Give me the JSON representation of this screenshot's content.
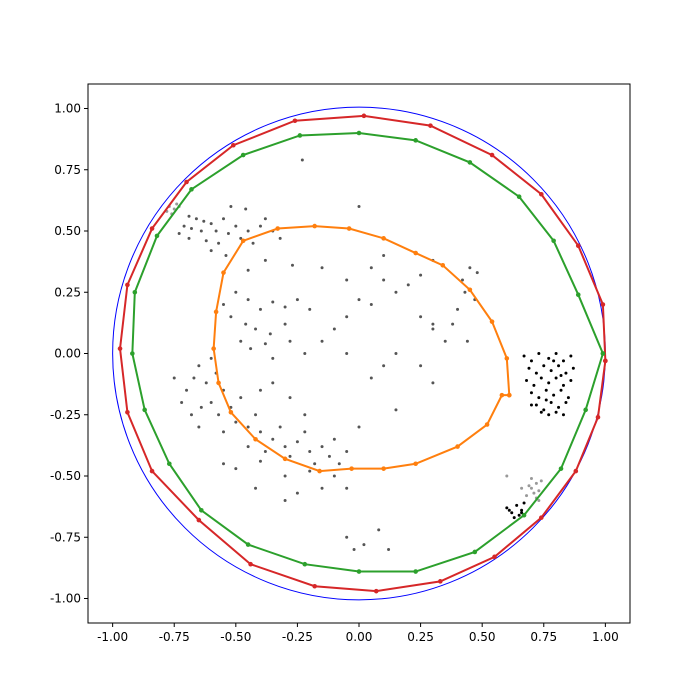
{
  "chart_data": {
    "type": "scatter",
    "title": "",
    "xlabel": "",
    "ylabel": "",
    "xlim": [
      -1.1,
      1.1
    ],
    "ylim": [
      -1.1,
      1.1
    ],
    "grid": false,
    "x_ticks": [
      "-1.00",
      "-0.75",
      "-0.50",
      "-0.25",
      "0.00",
      "0.25",
      "0.50",
      "0.75",
      "1.00"
    ],
    "y_ticks": [
      "1.00",
      "0.75",
      "0.50",
      "0.25",
      "0.00",
      "-0.25",
      "-0.50",
      "-0.75",
      "-1.00"
    ],
    "x_tick_values": [
      -1.0,
      -0.75,
      -0.5,
      -0.25,
      0.0,
      0.25,
      0.5,
      0.75,
      1.0
    ],
    "y_tick_values": [
      1.0,
      0.75,
      0.5,
      0.25,
      0.0,
      -0.25,
      -0.5,
      -0.75,
      -1.0
    ],
    "unit_circle": {
      "radius": 1.0,
      "color": "#0000ff"
    },
    "series": [
      {
        "color": "#d62728",
        "points": [
          [
            1.0,
            -0.03
          ],
          [
            0.99,
            0.2
          ],
          [
            0.89,
            0.44
          ],
          [
            0.74,
            0.65
          ],
          [
            0.54,
            0.81
          ],
          [
            0.29,
            0.93
          ],
          [
            0.02,
            0.97
          ],
          [
            -0.26,
            0.95
          ],
          [
            -0.51,
            0.85
          ],
          [
            -0.7,
            0.7
          ],
          [
            -0.84,
            0.51
          ],
          [
            -0.94,
            0.28
          ],
          [
            -0.97,
            0.02
          ],
          [
            -0.94,
            -0.24
          ],
          [
            -0.84,
            -0.48
          ],
          [
            -0.65,
            -0.68
          ],
          [
            -0.44,
            -0.86
          ],
          [
            -0.18,
            -0.95
          ],
          [
            0.07,
            -0.97
          ],
          [
            0.33,
            -0.93
          ],
          [
            0.55,
            -0.83
          ],
          [
            0.74,
            -0.67
          ],
          [
            0.88,
            -0.48
          ],
          [
            0.97,
            -0.26
          ],
          [
            1.0,
            -0.03
          ]
        ]
      },
      {
        "color": "#2ca02c",
        "points": [
          [
            0.99,
            0.0
          ],
          [
            0.89,
            0.24
          ],
          [
            0.79,
            0.46
          ],
          [
            0.65,
            0.64
          ],
          [
            0.45,
            0.78
          ],
          [
            0.23,
            0.87
          ],
          [
            0.0,
            0.9
          ],
          [
            -0.24,
            0.89
          ],
          [
            -0.47,
            0.81
          ],
          [
            -0.68,
            0.67
          ],
          [
            -0.82,
            0.48
          ],
          [
            -0.91,
            0.25
          ],
          [
            -0.92,
            0.0
          ],
          [
            -0.87,
            -0.23
          ],
          [
            -0.77,
            -0.45
          ],
          [
            -0.64,
            -0.64
          ],
          [
            -0.45,
            -0.78
          ],
          [
            -0.22,
            -0.86
          ],
          [
            0.0,
            -0.89
          ],
          [
            0.23,
            -0.89
          ],
          [
            0.47,
            -0.81
          ],
          [
            0.67,
            -0.66
          ],
          [
            0.82,
            -0.47
          ],
          [
            0.92,
            -0.23
          ],
          [
            0.99,
            0.0
          ]
        ]
      },
      {
        "color": "#ff7f0e",
        "points": [
          [
            0.61,
            -0.17
          ],
          [
            0.6,
            -0.02
          ],
          [
            0.54,
            0.13
          ],
          [
            0.45,
            0.26
          ],
          [
            0.34,
            0.36
          ],
          [
            0.23,
            0.41
          ],
          [
            0.1,
            0.47
          ],
          [
            -0.04,
            0.51
          ],
          [
            -0.18,
            0.52
          ],
          [
            -0.33,
            0.51
          ],
          [
            -0.47,
            0.46
          ],
          [
            -0.55,
            0.33
          ],
          [
            -0.58,
            0.17
          ],
          [
            -0.59,
            0.02
          ],
          [
            -0.57,
            -0.12
          ],
          [
            -0.52,
            -0.24
          ],
          [
            -0.42,
            -0.35
          ],
          [
            -0.3,
            -0.43
          ],
          [
            -0.16,
            -0.48
          ],
          [
            -0.03,
            -0.47
          ],
          [
            0.1,
            -0.47
          ],
          [
            0.23,
            -0.45
          ],
          [
            0.4,
            -0.38
          ],
          [
            0.52,
            -0.29
          ],
          [
            0.58,
            -0.17
          ],
          [
            0.61,
            -0.17
          ]
        ]
      }
    ],
    "scatter_groups": [
      {
        "color": "#555555",
        "points": [
          [
            -0.69,
            0.56
          ],
          [
            -0.66,
            0.55
          ],
          [
            -0.63,
            0.54
          ],
          [
            -0.71,
            0.52
          ],
          [
            -0.68,
            0.51
          ],
          [
            -0.64,
            0.5
          ],
          [
            -0.6,
            0.53
          ],
          [
            -0.58,
            0.5
          ],
          [
            -0.55,
            0.55
          ],
          [
            -0.73,
            0.49
          ],
          [
            -0.69,
            0.47
          ],
          [
            -0.62,
            0.46
          ],
          [
            -0.57,
            0.45
          ],
          [
            -0.53,
            0.49
          ],
          [
            -0.5,
            0.52
          ],
          [
            -0.48,
            0.47
          ],
          [
            -0.45,
            0.5
          ],
          [
            -0.43,
            0.45
          ],
          [
            -0.4,
            0.52
          ],
          [
            -0.38,
            0.55
          ],
          [
            -0.35,
            0.5
          ],
          [
            -0.32,
            0.47
          ],
          [
            -0.52,
            0.6
          ],
          [
            -0.46,
            0.59
          ],
          [
            -0.6,
            0.42
          ],
          [
            -0.54,
            0.4
          ],
          [
            -0.55,
            0.2
          ],
          [
            -0.5,
            0.25
          ],
          [
            -0.45,
            0.22
          ],
          [
            -0.4,
            0.18
          ],
          [
            -0.35,
            0.21
          ],
          [
            -0.3,
            0.19
          ],
          [
            -0.25,
            0.22
          ],
          [
            -0.2,
            0.18
          ],
          [
            -0.52,
            0.15
          ],
          [
            -0.46,
            0.12
          ],
          [
            -0.42,
            0.1
          ],
          [
            -0.36,
            0.08
          ],
          [
            -0.3,
            0.12
          ],
          [
            -0.48,
            0.05
          ],
          [
            -0.44,
            0.02
          ],
          [
            -0.38,
            0.04
          ],
          [
            -0.35,
            -0.02
          ],
          [
            -0.28,
            0.05
          ],
          [
            -0.22,
            0.0
          ],
          [
            -0.15,
            0.05
          ],
          [
            -0.1,
            0.1
          ],
          [
            -0.05,
            0.15
          ],
          [
            0.05,
            0.2
          ],
          [
            0.1,
            0.3
          ],
          [
            0.15,
            0.25
          ],
          [
            -0.15,
            0.35
          ],
          [
            -0.27,
            0.36
          ],
          [
            -0.38,
            0.38
          ],
          [
            -0.45,
            0.34
          ],
          [
            -0.6,
            -0.02
          ],
          [
            -0.65,
            -0.05
          ],
          [
            -0.67,
            -0.1
          ],
          [
            -0.62,
            -0.12
          ],
          [
            -0.58,
            -0.08
          ],
          [
            -0.55,
            -0.15
          ],
          [
            -0.6,
            -0.2
          ],
          [
            -0.64,
            -0.22
          ],
          [
            -0.57,
            -0.25
          ],
          [
            -0.52,
            -0.22
          ],
          [
            -0.48,
            -0.18
          ],
          [
            -0.5,
            -0.28
          ],
          [
            -0.55,
            -0.32
          ],
          [
            -0.45,
            -0.3
          ],
          [
            -0.42,
            -0.25
          ],
          [
            -0.4,
            -0.32
          ],
          [
            -0.45,
            -0.38
          ],
          [
            -0.38,
            -0.4
          ],
          [
            -0.35,
            -0.35
          ],
          [
            -0.32,
            -0.3
          ],
          [
            -0.3,
            -0.38
          ],
          [
            -0.28,
            -0.42
          ],
          [
            -0.25,
            -0.36
          ],
          [
            -0.22,
            -0.32
          ],
          [
            -0.2,
            -0.4
          ],
          [
            -0.18,
            -0.45
          ],
          [
            -0.15,
            -0.38
          ],
          [
            -0.12,
            -0.42
          ],
          [
            -0.1,
            -0.35
          ],
          [
            -0.08,
            -0.45
          ],
          [
            -0.05,
            -0.4
          ],
          [
            -0.72,
            -0.2
          ],
          [
            -0.7,
            -0.15
          ],
          [
            -0.75,
            -0.1
          ],
          [
            -0.68,
            -0.25
          ],
          [
            -0.65,
            -0.3
          ],
          [
            -0.4,
            -0.15
          ],
          [
            -0.35,
            -0.12
          ],
          [
            -0.28,
            -0.18
          ],
          [
            -0.22,
            -0.25
          ],
          [
            -0.3,
            -0.5
          ],
          [
            -0.2,
            -0.48
          ],
          [
            -0.1,
            -0.5
          ],
          [
            -0.05,
            -0.55
          ],
          [
            -0.25,
            -0.57
          ],
          [
            -0.15,
            -0.55
          ],
          [
            -0.5,
            -0.47
          ],
          [
            -0.4,
            -0.44
          ],
          [
            0.0,
            -0.3
          ],
          [
            0.05,
            -0.1
          ],
          [
            0.1,
            -0.05
          ],
          [
            0.15,
            0.0
          ],
          [
            -0.05,
            0.0
          ],
          [
            0.25,
            0.15
          ],
          [
            0.3,
            0.1
          ],
          [
            0.35,
            0.05
          ],
          [
            0.05,
            0.35
          ],
          [
            0.1,
            0.4
          ],
          [
            0.15,
            -0.23
          ],
          [
            0.42,
            0.3
          ],
          [
            0.45,
            0.35
          ],
          [
            0.48,
            0.33
          ],
          [
            0.43,
            0.25
          ],
          [
            0.47,
            0.22
          ],
          [
            0.4,
            0.18
          ],
          [
            0.38,
            0.12
          ],
          [
            0.44,
            0.05
          ],
          [
            0.3,
            0.38
          ],
          [
            0.2,
            0.28
          ],
          [
            0.0,
            0.22
          ],
          [
            -0.05,
            0.3
          ],
          [
            0.25,
            -0.05
          ],
          [
            0.3,
            -0.12
          ],
          [
            -0.55,
            -0.45
          ],
          [
            -0.42,
            -0.55
          ],
          [
            -0.3,
            -0.6
          ],
          [
            -0.05,
            -0.75
          ],
          [
            0.02,
            -0.78
          ],
          [
            0.08,
            -0.72
          ],
          [
            0.12,
            -0.8
          ],
          [
            -0.02,
            -0.8
          ],
          [
            -0.23,
            0.79
          ],
          [
            0.0,
            0.6
          ],
          [
            0.3,
            0.12
          ],
          [
            0.25,
            0.32
          ]
        ]
      },
      {
        "color": "#000000",
        "points": [
          [
            0.67,
            -0.01
          ],
          [
            0.7,
            -0.03
          ],
          [
            0.73,
            0.0
          ],
          [
            0.77,
            -0.02
          ],
          [
            0.8,
            0.0
          ],
          [
            0.83,
            -0.03
          ],
          [
            0.86,
            -0.01
          ],
          [
            0.69,
            -0.06
          ],
          [
            0.72,
            -0.08
          ],
          [
            0.75,
            -0.05
          ],
          [
            0.78,
            -0.07
          ],
          [
            0.81,
            -0.05
          ],
          [
            0.84,
            -0.08
          ],
          [
            0.87,
            -0.06
          ],
          [
            0.68,
            -0.11
          ],
          [
            0.71,
            -0.13
          ],
          [
            0.74,
            -0.1
          ],
          [
            0.77,
            -0.12
          ],
          [
            0.8,
            -0.1
          ],
          [
            0.83,
            -0.13
          ],
          [
            0.86,
            -0.11
          ],
          [
            0.7,
            -0.16
          ],
          [
            0.73,
            -0.18
          ],
          [
            0.76,
            -0.15
          ],
          [
            0.79,
            -0.17
          ],
          [
            0.82,
            -0.15
          ],
          [
            0.85,
            -0.18
          ],
          [
            0.72,
            -0.21
          ],
          [
            0.75,
            -0.23
          ],
          [
            0.78,
            -0.2
          ],
          [
            0.81,
            -0.22
          ],
          [
            0.84,
            -0.2
          ],
          [
            0.74,
            -0.24
          ],
          [
            0.77,
            -0.25
          ],
          [
            0.8,
            -0.24
          ],
          [
            0.83,
            -0.25
          ],
          [
            0.79,
            -0.03
          ],
          [
            0.82,
            -0.09
          ],
          [
            0.76,
            -0.19
          ],
          [
            0.7,
            -0.21
          ],
          [
            0.6,
            -0.63
          ],
          [
            0.62,
            -0.65
          ],
          [
            0.64,
            -0.62
          ],
          [
            0.66,
            -0.64
          ],
          [
            0.63,
            -0.67
          ],
          [
            0.65,
            -0.66
          ],
          [
            0.61,
            -0.64
          ],
          [
            0.67,
            -0.61
          ],
          [
            0.66,
            -0.65
          ]
        ]
      },
      {
        "color": "#999999",
        "points": [
          [
            -0.77,
            0.6
          ],
          [
            -0.75,
            0.59
          ],
          [
            -0.76,
            0.57
          ],
          [
            -0.74,
            0.61
          ],
          [
            -0.78,
            0.58
          ],
          [
            -0.73,
            0.6
          ],
          [
            0.7,
            -0.55
          ],
          [
            0.72,
            -0.53
          ],
          [
            0.71,
            -0.57
          ],
          [
            0.73,
            -0.56
          ],
          [
            0.69,
            -0.54
          ],
          [
            0.74,
            -0.52
          ],
          [
            0.72,
            -0.59
          ],
          [
            0.7,
            -0.51
          ],
          [
            0.68,
            -0.58
          ],
          [
            0.6,
            -0.5
          ],
          [
            0.66,
            -0.55
          ],
          [
            0.73,
            -0.6
          ]
        ]
      }
    ]
  }
}
